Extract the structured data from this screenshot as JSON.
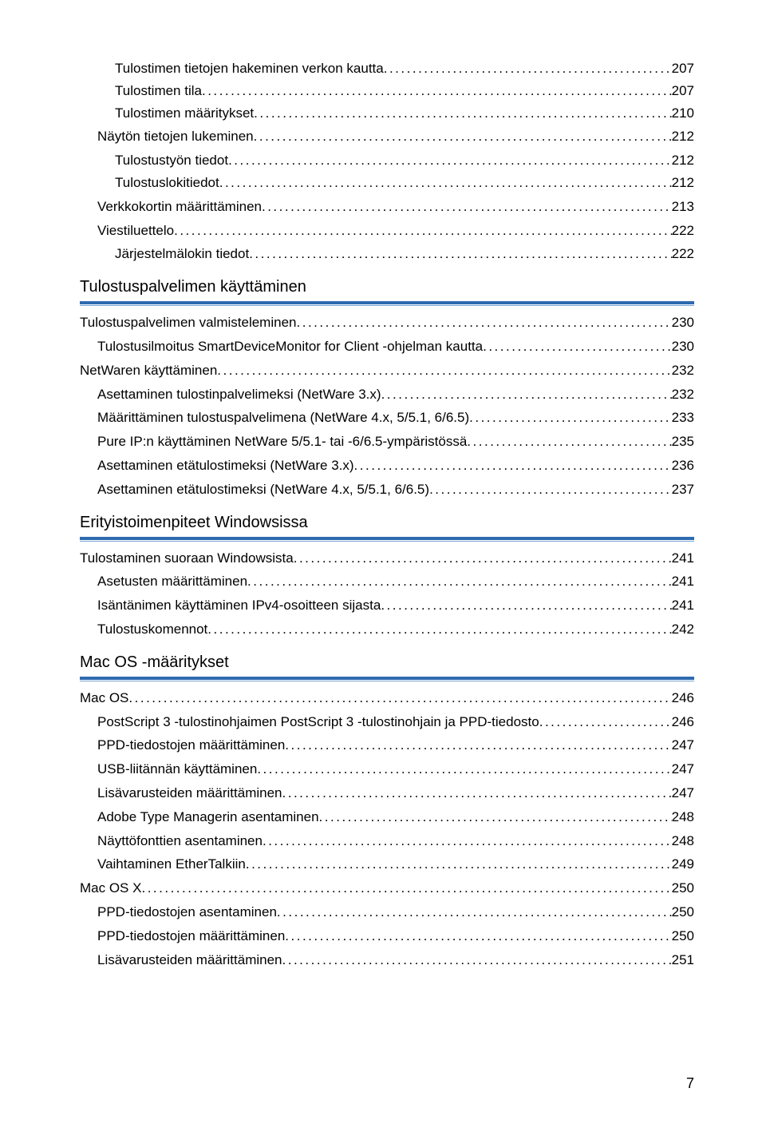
{
  "page_number": "7",
  "toc": [
    {
      "level": 2,
      "label": "Tulostimen tietojen hakeminen verkon kautta",
      "page": "207"
    },
    {
      "level": 2,
      "label": "Tulostimen tila",
      "page": "207"
    },
    {
      "level": 2,
      "label": "Tulostimen määritykset",
      "page": "210"
    },
    {
      "level": 1,
      "label": "Näytön tietojen lukeminen",
      "page": "212"
    },
    {
      "level": 2,
      "label": "Tulostustyön tiedot",
      "page": "212"
    },
    {
      "level": 2,
      "label": "Tulostuslokitiedot",
      "page": "212"
    },
    {
      "level": 1,
      "label": "Verkkokortin määrittäminen",
      "page": "213"
    },
    {
      "level": 1,
      "label": "Viestiluettelo",
      "page": "222"
    },
    {
      "level": 2,
      "label": "Järjestelmälokin tiedot",
      "page": "222"
    },
    {
      "heading": "Tulostuspalvelimen käyttäminen"
    },
    {
      "level": 0,
      "label": "Tulostuspalvelimen valmisteleminen",
      "page": "230"
    },
    {
      "level": 1,
      "label": "Tulostusilmoitus SmartDeviceMonitor for Client -ohjelman kautta",
      "page": "230"
    },
    {
      "level": 0,
      "label": "NetWaren käyttäminen",
      "page": "232"
    },
    {
      "level": 1,
      "label": "Asettaminen tulostinpalvelimeksi (NetWare 3.x)",
      "page": "232"
    },
    {
      "level": 1,
      "label": "Määrittäminen tulostuspalvelimena (NetWare 4.x, 5/5.1, 6/6.5)",
      "page": "233"
    },
    {
      "level": 1,
      "label": "Pure IP:n käyttäminen NetWare 5/5.1- tai -6/6.5-ympäristössä",
      "page": "235"
    },
    {
      "level": 1,
      "label": "Asettaminen etätulostimeksi (NetWare 3.x)",
      "page": "236"
    },
    {
      "level": 1,
      "label": "Asettaminen etätulostimeksi (NetWare 4.x, 5/5.1, 6/6.5)",
      "page": "237"
    },
    {
      "heading": "Erityistoimenpiteet Windowsissa"
    },
    {
      "level": 0,
      "label": "Tulostaminen suoraan Windowsista",
      "page": "241"
    },
    {
      "level": 1,
      "label": "Asetusten määrittäminen",
      "page": "241"
    },
    {
      "level": 1,
      "label": "Isäntänimen käyttäminen IPv4-osoitteen sijasta",
      "page": "241"
    },
    {
      "level": 1,
      "label": "Tulostuskomennot",
      "page": "242"
    },
    {
      "heading": "Mac OS -määritykset"
    },
    {
      "level": 0,
      "label": "Mac OS",
      "page": "246"
    },
    {
      "level": 1,
      "label": "PostScript 3 -tulostinohjaimen PostScript 3 -tulostinohjain ja PPD-tiedosto",
      "page": "246"
    },
    {
      "level": 1,
      "label": "PPD-tiedostojen määrittäminen",
      "page": "247"
    },
    {
      "level": 1,
      "label": "USB-liitännän käyttäminen",
      "page": "247"
    },
    {
      "level": 1,
      "label": "Lisävarusteiden määrittäminen",
      "page": "247"
    },
    {
      "level": 1,
      "label": "Adobe Type Managerin asentaminen",
      "page": "248"
    },
    {
      "level": 1,
      "label": "Näyttöfonttien asentaminen",
      "page": "248"
    },
    {
      "level": 1,
      "label": "Vaihtaminen EtherTalkiin",
      "page": "249"
    },
    {
      "level": 0,
      "label": "Mac OS X",
      "page": "250"
    },
    {
      "level": 1,
      "label": "PPD-tiedostojen asentaminen",
      "page": "250"
    },
    {
      "level": 1,
      "label": "PPD-tiedostojen määrittäminen",
      "page": "250"
    },
    {
      "level": 1,
      "label": "Lisävarusteiden määrittäminen",
      "page": "251"
    }
  ]
}
